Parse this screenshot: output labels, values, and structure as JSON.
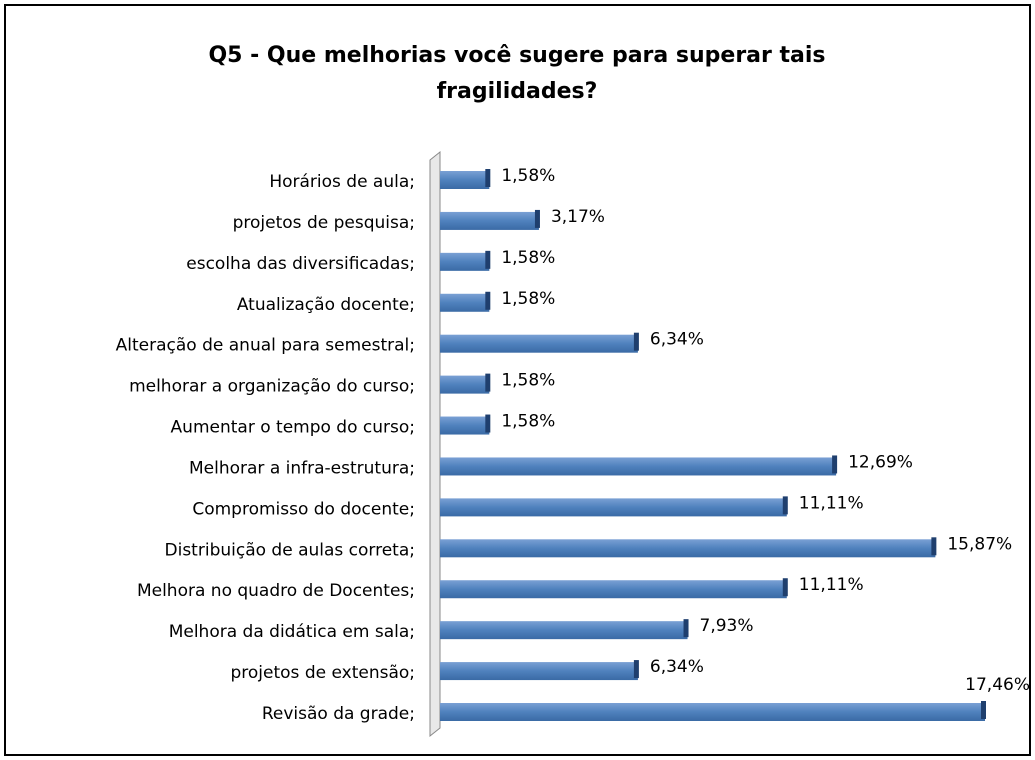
{
  "chart_data": {
    "type": "hbar",
    "title": "Q5 - Que melhorias você sugere para superar tais fragilidades?",
    "categories": [
      "Horários de aula;",
      "projetos de pesquisa;",
      "escolha das diversificadas;",
      "Atualização docente;",
      "Alteração de anual para semestral;",
      "melhorar a organização do curso;",
      "Aumentar o tempo do curso;",
      "Melhorar a infra-estrutura;",
      "Compromisso do docente;",
      "Distribuição de aulas correta;",
      "Melhora no quadro de Docentes;",
      "Melhora da didática em sala;",
      "projetos de extensão;",
      "Revisão da grade;"
    ],
    "values": [
      1.58,
      3.17,
      1.58,
      1.58,
      6.34,
      1.58,
      1.58,
      12.69,
      11.11,
      15.87,
      11.11,
      7.93,
      6.34,
      17.46
    ],
    "value_labels": [
      "1,58%",
      "3,17%",
      "1,58%",
      "1,58%",
      "6,34%",
      "1,58%",
      "1,58%",
      "12,69%",
      "11,11%",
      "15,87%",
      "11,11%",
      "7,93%",
      "6,34%",
      "17,46%"
    ],
    "color": "#4f81bd"
  }
}
